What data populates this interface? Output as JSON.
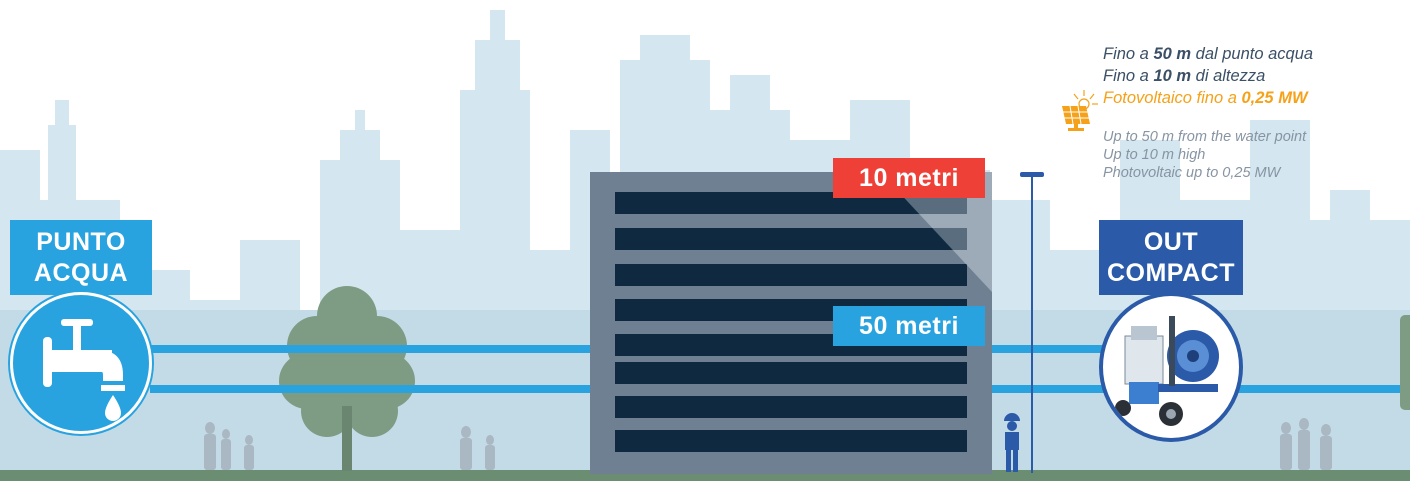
{
  "labels": {
    "water_point_line1": "PUNTO",
    "water_point_line2": "ACQUA",
    "out_compact_line1": "OUT",
    "out_compact_line2": "COMPACT",
    "height_label": "10 metri",
    "distance_label": "50 metri"
  },
  "info_it": {
    "line1_prefix": "Fino a ",
    "line1_value": "50 m",
    "line1_suffix": " dal punto acqua",
    "line2_prefix": "Fino a ",
    "line2_value": "10 m",
    "line2_suffix": " di altezza",
    "line3_prefix": "Fotovoltaico fino a ",
    "line3_value": "0,25 MW"
  },
  "info_en": {
    "line1": "Up to 50 m from the water point",
    "line2": "Up to 10 m high",
    "line3": "Photovoltaic up to 0,25 MW"
  },
  "icons": {
    "faucet": "faucet-icon",
    "solar": "solar-panel-icon",
    "machine": "pressure-washer-icon",
    "worker": "worker-icon",
    "tree": "tree-icon",
    "lamp": "street-lamp-icon"
  },
  "colors": {
    "primary_blue": "#29a3e0",
    "dark_blue": "#2a5aa8",
    "red": "#ee4037",
    "orange": "#f5a21a",
    "building": "#6e8091",
    "window": "#0f2a40",
    "ground": "#6b8e72",
    "skyline": "#cfe4ee"
  }
}
